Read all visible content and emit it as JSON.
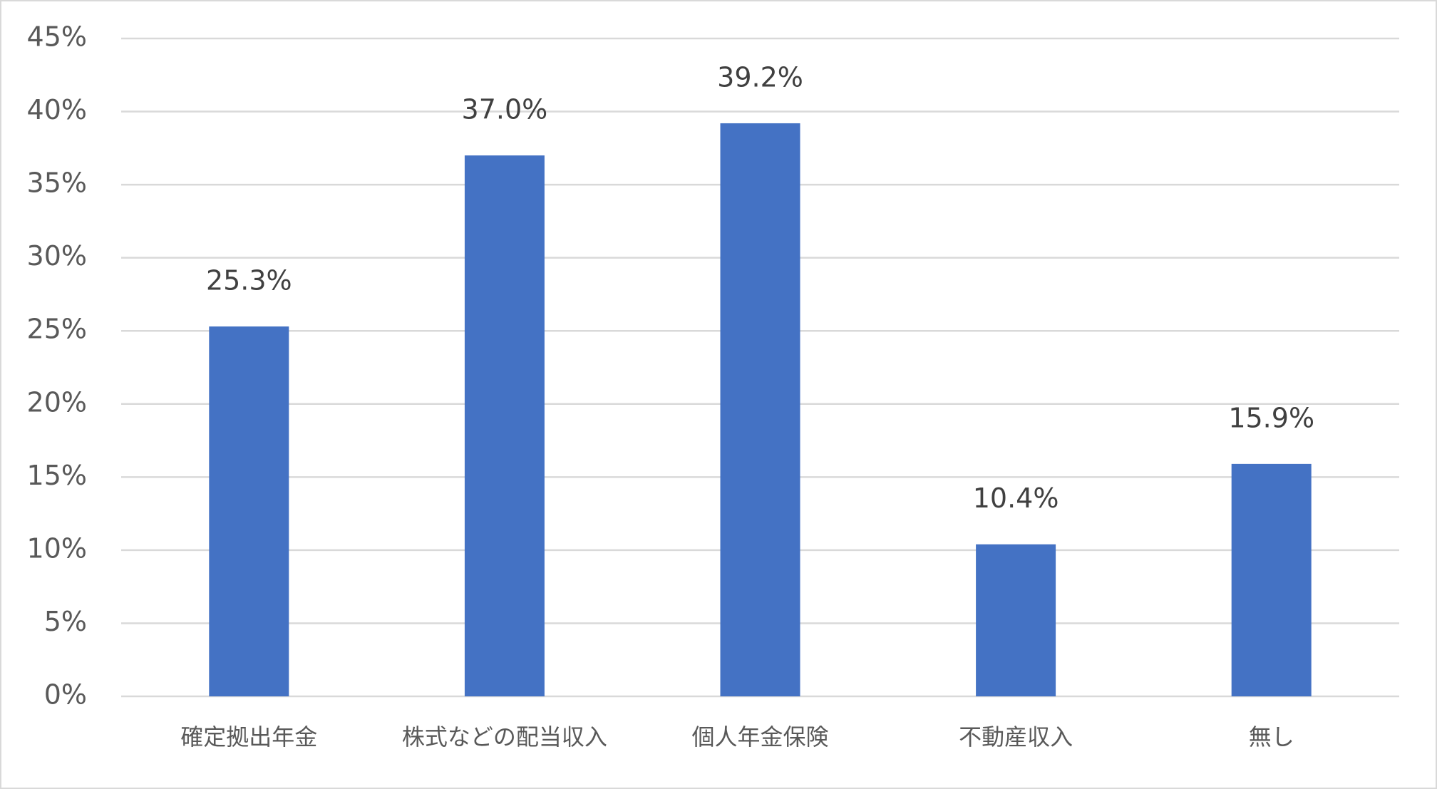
{
  "chart_data": {
    "type": "bar",
    "categories": [
      "確定拠出年金",
      "株式などの配当収入",
      "個人年金保険",
      "不動産収入",
      "無し"
    ],
    "values": [
      25.3,
      37.0,
      39.2,
      10.4,
      15.9
    ],
    "value_labels": [
      "25.3%",
      "37.0%",
      "39.2%",
      "10.4%",
      "15.9%"
    ],
    "color": "#4472c4",
    "ylim": [
      0,
      45
    ],
    "yticks": [
      {
        "value": 0,
        "label": "0%"
      },
      {
        "value": 5,
        "label": "5%"
      },
      {
        "value": 10,
        "label": "10%"
      },
      {
        "value": 15,
        "label": "15%"
      },
      {
        "value": 20,
        "label": "20%"
      },
      {
        "value": 25,
        "label": "25%"
      },
      {
        "value": 30,
        "label": "30%"
      },
      {
        "value": 35,
        "label": "35%"
      },
      {
        "value": 40,
        "label": "40%"
      },
      {
        "value": 45,
        "label": "45%"
      }
    ],
    "grid": true
  }
}
